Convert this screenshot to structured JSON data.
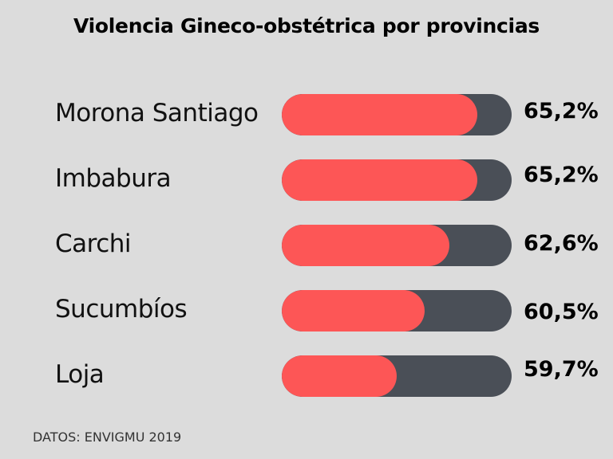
{
  "chart_data": {
    "type": "bar",
    "orientation": "horizontal",
    "title": "Violencia Gineco-obstétrica por provincias",
    "categories": [
      "Morona Santiago",
      "Imbabura",
      "Carchi",
      "Sucumbíos",
      "Loja"
    ],
    "values": [
      65.2,
      65.2,
      62.6,
      60.5,
      59.7
    ],
    "value_labels": [
      "65,2%",
      "65,2%",
      "62,6%",
      "60,5%",
      "59,7%"
    ],
    "fill_fraction": [
      0.85,
      0.85,
      0.73,
      0.62,
      0.5
    ],
    "unit": "%",
    "source": "DATOS: ENVIGMU 2019",
    "colors": {
      "fill": "#fd5656",
      "track": "#4a4f57",
      "background": "#dcdcdc"
    }
  }
}
